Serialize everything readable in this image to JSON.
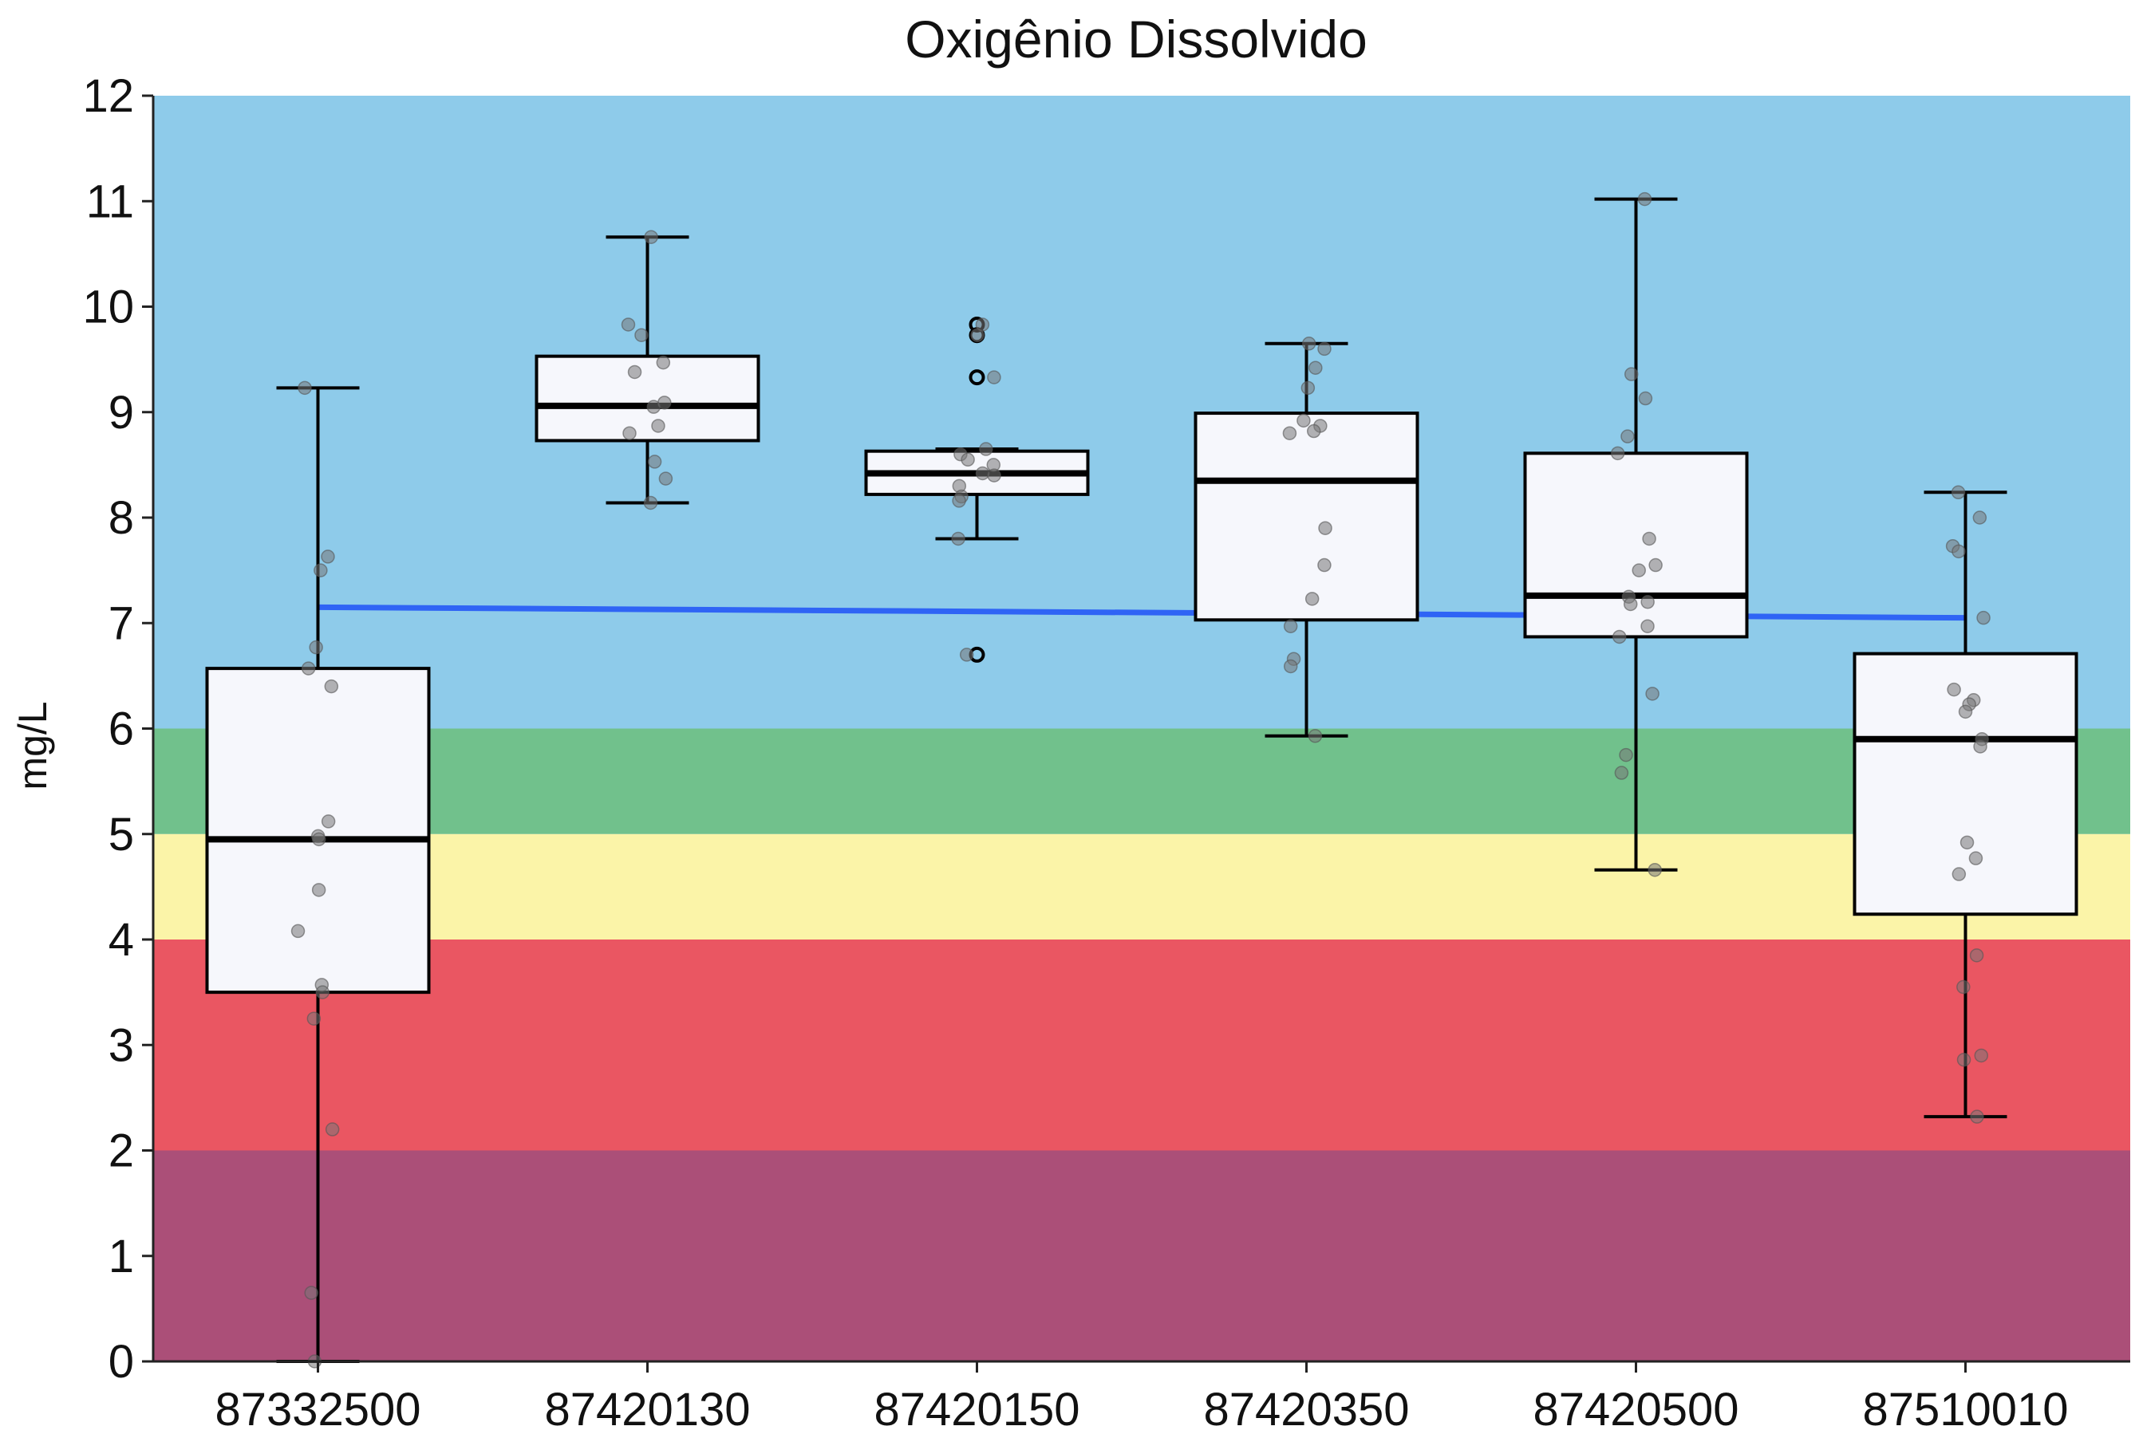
{
  "chart_data": {
    "type": "box",
    "title": "Oxigênio Dissolvido",
    "xlabel": "",
    "ylabel": "mg/L",
    "ylim": [
      0,
      12
    ],
    "yticks": [
      "0",
      "1",
      "2",
      "3",
      "4",
      "5",
      "6",
      "7",
      "8",
      "9",
      "10",
      "11",
      "12"
    ],
    "categories": [
      "87332500",
      "87420130",
      "87420150",
      "87420350",
      "87420500",
      "87510010"
    ],
    "bands": [
      {
        "from": 0,
        "to": 2,
        "color": "#ab4f78"
      },
      {
        "from": 2,
        "to": 4,
        "color": "#ea5662"
      },
      {
        "from": 4,
        "to": 5,
        "color": "#fbf4a8"
      },
      {
        "from": 5,
        "to": 6,
        "color": "#71c18c"
      },
      {
        "from": 6,
        "to": 12,
        "color": "#8ecbea"
      }
    ],
    "boxes": [
      {
        "category": "87332500",
        "whisker_low": 0.0,
        "q1": 3.5,
        "median": 4.95,
        "q3": 6.57,
        "whisker_high": 9.23,
        "outliers": [],
        "points": [
          9.23,
          7.63,
          7.5,
          6.77,
          6.57,
          6.4,
          5.12,
          4.98,
          4.95,
          4.47,
          4.08,
          3.57,
          3.5,
          3.25,
          2.2,
          0.65,
          0.0
        ]
      },
      {
        "category": "87420130",
        "whisker_low": 8.14,
        "q1": 8.73,
        "median": 9.06,
        "q3": 9.53,
        "whisker_high": 10.66,
        "outliers": [],
        "points": [
          10.66,
          9.83,
          9.73,
          9.47,
          9.38,
          9.09,
          9.05,
          8.87,
          8.8,
          8.53,
          8.37,
          8.14
        ]
      },
      {
        "category": "87420150",
        "whisker_low": 7.8,
        "q1": 8.22,
        "median": 8.42,
        "q3": 8.63,
        "whisker_high": 8.65,
        "outliers": [
          9.83,
          9.73,
          9.33,
          6.7
        ],
        "points": [
          9.83,
          9.73,
          9.33,
          8.65,
          8.6,
          8.55,
          8.5,
          8.42,
          8.4,
          8.3,
          8.2,
          8.16,
          7.8,
          6.7
        ]
      },
      {
        "category": "87420350",
        "whisker_low": 5.93,
        "q1": 7.03,
        "median": 8.35,
        "q3": 8.99,
        "whisker_high": 9.65,
        "outliers": [],
        "points": [
          9.65,
          9.6,
          9.42,
          9.23,
          8.92,
          8.87,
          8.82,
          8.8,
          7.9,
          7.55,
          7.23,
          6.97,
          6.66,
          6.59,
          5.93
        ]
      },
      {
        "category": "87420500",
        "whisker_low": 4.66,
        "q1": 6.87,
        "median": 7.26,
        "q3": 8.61,
        "whisker_high": 11.02,
        "outliers": [],
        "points": [
          11.02,
          9.36,
          9.13,
          8.77,
          8.61,
          7.8,
          7.55,
          7.5,
          7.25,
          7.2,
          7.18,
          6.97,
          6.87,
          6.33,
          5.75,
          5.58,
          4.66
        ]
      },
      {
        "category": "87510010",
        "whisker_low": 2.32,
        "q1": 4.24,
        "median": 5.9,
        "q3": 6.71,
        "whisker_high": 8.24,
        "outliers": [],
        "points": [
          8.24,
          8.0,
          7.73,
          7.68,
          7.05,
          6.37,
          6.27,
          6.23,
          6.16,
          5.9,
          5.83,
          4.92,
          4.77,
          4.62,
          3.85,
          3.55,
          2.9,
          2.86,
          2.32
        ]
      }
    ],
    "trend_line": {
      "color": "#2f64f5",
      "start": 7.15,
      "end": 7.05
    }
  }
}
